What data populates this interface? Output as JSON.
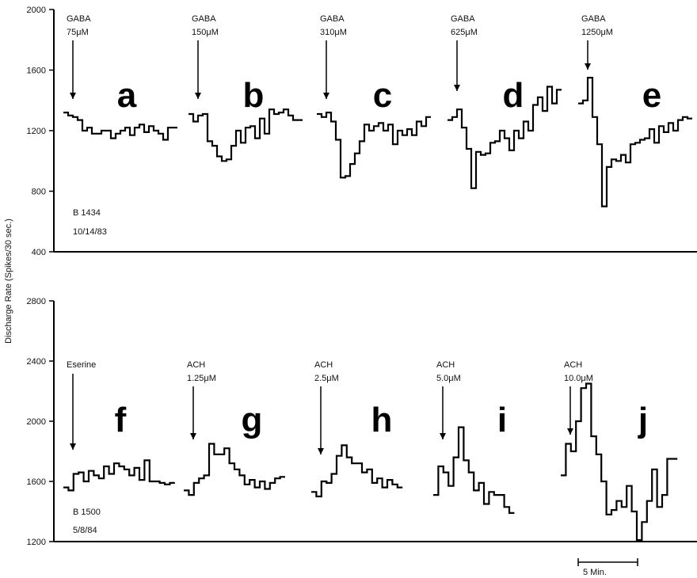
{
  "ylabel": "Discharge Rate (Spikes/30 sec.)",
  "scale_bar_label": "5 Min.",
  "chart_data": [
    {
      "type": "line",
      "title": "",
      "xlabel": "",
      "ylabel": "Discharge Rate (Spikes/30 sec.)",
      "ylim": [
        400,
        2000
      ],
      "yticks": [
        400,
        800,
        1200,
        1600,
        2000
      ],
      "id_lines": [
        "B 1434",
        "10/14/83"
      ],
      "panels": [
        {
          "letter": "a",
          "drug": "GABA",
          "dose": "75μM",
          "values": [
            1320,
            1300,
            1290,
            1270,
            1200,
            1220,
            1180,
            1180,
            1200,
            1200,
            1150,
            1180,
            1200,
            1220,
            1170,
            1220,
            1240,
            1190,
            1230,
            1200,
            1180,
            1140,
            1220,
            1220
          ]
        },
        {
          "letter": "b",
          "drug": "GABA",
          "dose": "150μM",
          "values": [
            1310,
            1260,
            1300,
            1310,
            1130,
            1100,
            1030,
            1000,
            1010,
            1100,
            1200,
            1120,
            1220,
            1230,
            1150,
            1280,
            1180,
            1340,
            1310,
            1320,
            1340,
            1300,
            1270,
            1270
          ]
        },
        {
          "letter": "c",
          "drug": "GABA",
          "dose": "310μM",
          "values": [
            1310,
            1290,
            1320,
            1260,
            1140,
            890,
            900,
            980,
            1050,
            1130,
            1240,
            1200,
            1230,
            1250,
            1200,
            1240,
            1110,
            1200,
            1170,
            1210,
            1170,
            1260,
            1230,
            1290
          ]
        },
        {
          "letter": "d",
          "drug": "GABA",
          "dose": "625μM",
          "values": [
            1270,
            1290,
            1340,
            1220,
            1080,
            820,
            1060,
            1040,
            1050,
            1120,
            1130,
            1200,
            1150,
            1070,
            1200,
            1150,
            1260,
            1200,
            1370,
            1420,
            1330,
            1490,
            1380,
            1470
          ]
        },
        {
          "letter": "e",
          "drug": "GABA",
          "dose": "1250μM",
          "values": [
            1380,
            1400,
            1550,
            1290,
            1110,
            700,
            960,
            1010,
            1000,
            1040,
            990,
            1110,
            1120,
            1140,
            1150,
            1210,
            1120,
            1230,
            1190,
            1250,
            1200,
            1270,
            1290,
            1280
          ]
        }
      ]
    },
    {
      "type": "line",
      "title": "",
      "xlabel": "",
      "ylabel": "Discharge Rate (Spikes/30 sec.)",
      "ylim": [
        1200,
        2800
      ],
      "yticks": [
        1200,
        1600,
        2000,
        2400,
        2800
      ],
      "id_lines": [
        "B 1500",
        "5/8/84"
      ],
      "panels": [
        {
          "letter": "f",
          "drug": "Eserine",
          "dose": "",
          "values": [
            1560,
            1540,
            1650,
            1660,
            1600,
            1670,
            1640,
            1620,
            1700,
            1650,
            1720,
            1700,
            1680,
            1640,
            1690,
            1610,
            1740,
            1600,
            1600,
            1590,
            1580,
            1590
          ]
        },
        {
          "letter": "g",
          "drug": "ACH",
          "dose": "1.25μM",
          "values": [
            1540,
            1510,
            1590,
            1620,
            1640,
            1850,
            1780,
            1780,
            1820,
            1720,
            1680,
            1640,
            1580,
            1610,
            1560,
            1600,
            1550,
            1590,
            1620,
            1630
          ]
        },
        {
          "letter": "h",
          "drug": "ACH",
          "dose": "2.5μM",
          "values": [
            1530,
            1500,
            1600,
            1590,
            1650,
            1770,
            1840,
            1760,
            1720,
            1720,
            1660,
            1680,
            1590,
            1620,
            1560,
            1610,
            1580,
            1560
          ]
        },
        {
          "letter": "i",
          "drug": "ACH",
          "dose": "5.0μM",
          "values": [
            1510,
            1700,
            1660,
            1570,
            1760,
            1960,
            1740,
            1660,
            1540,
            1590,
            1450,
            1530,
            1510,
            1510,
            1430,
            1390
          ]
        },
        {
          "letter": "j",
          "drug": "ACH",
          "dose": "10.0μM",
          "values": [
            1640,
            1850,
            1800,
            2000,
            2220,
            2250,
            1900,
            1780,
            1600,
            1380,
            1410,
            1470,
            1430,
            1570,
            1400,
            1210,
            1330,
            1470,
            1680,
            1430,
            1510,
            1750,
            1750
          ]
        }
      ]
    }
  ]
}
